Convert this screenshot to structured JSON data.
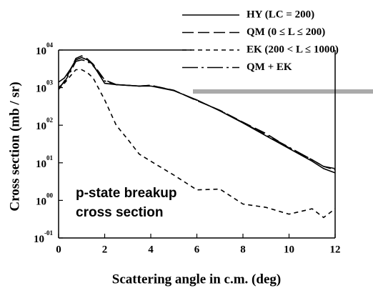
{
  "chart_data": {
    "type": "line",
    "xlabel": "Scattering angle in c.m. (deg)",
    "ylabel": "Cross section (mb / sr)",
    "annotation": [
      "p-state breakup",
      "cross section"
    ],
    "log_y": true,
    "xlim": [
      0,
      12
    ],
    "ylim": [
      0.1,
      10000
    ],
    "xticks": [
      0,
      2,
      4,
      6,
      8,
      10,
      12
    ],
    "yticks": [
      {
        "value": 10000,
        "label": "10",
        "exponent": "04"
      },
      {
        "value": 1000,
        "label": "10",
        "exponent": "03"
      },
      {
        "value": 100,
        "label": "10",
        "exponent": "02"
      },
      {
        "value": 10,
        "label": "10",
        "exponent": "01"
      },
      {
        "value": 1,
        "label": "10",
        "exponent": "00"
      },
      {
        "value": 0.1,
        "label": "10",
        "exponent": "-01"
      }
    ],
    "x": [
      0,
      0.25,
      0.5,
      0.75,
      1,
      1.25,
      1.5,
      2,
      2.5,
      3,
      3.5,
      4,
      5,
      6,
      7,
      8,
      9,
      10,
      11,
      11.5,
      12
    ],
    "series": [
      {
        "name": "HY (LC = 200)",
        "color": "#000000",
        "dash": "none",
        "values": [
          1400,
          1800,
          3000,
          5500,
          6300,
          5500,
          4000,
          1300,
          1200,
          1150,
          1100,
          1100,
          830,
          470,
          240,
          115,
          52,
          24,
          11,
          7,
          5.4
        ]
      },
      {
        "name": "QM (0 ≤ L ≤ 200)",
        "color": "#000000",
        "dash": "16,6",
        "values": [
          900,
          1500,
          2800,
          6000,
          7000,
          5800,
          4200,
          1600,
          1200,
          1150,
          1100,
          1150,
          850,
          450,
          250,
          120,
          60,
          25,
          12,
          8,
          7
        ]
      },
      {
        "name": "EK (200 < L ≤ 1000)",
        "color": "#000000",
        "dash": "6,5",
        "values": [
          900,
          1300,
          2000,
          3000,
          3000,
          2500,
          1800,
          470,
          100,
          42,
          17,
          11,
          4.7,
          1.9,
          2,
          0.8,
          0.65,
          0.43,
          0.6,
          0.35,
          0.6
        ]
      },
      {
        "name": "QM + EK",
        "color": "#000000",
        "dash": "22,5,3,5",
        "values": [
          1000,
          1400,
          2500,
          5000,
          5500,
          5000,
          3800,
          1500,
          1200,
          1150,
          1100,
          1150,
          840,
          460,
          245,
          118,
          55,
          26,
          12,
          8,
          6.5
        ]
      }
    ]
  }
}
